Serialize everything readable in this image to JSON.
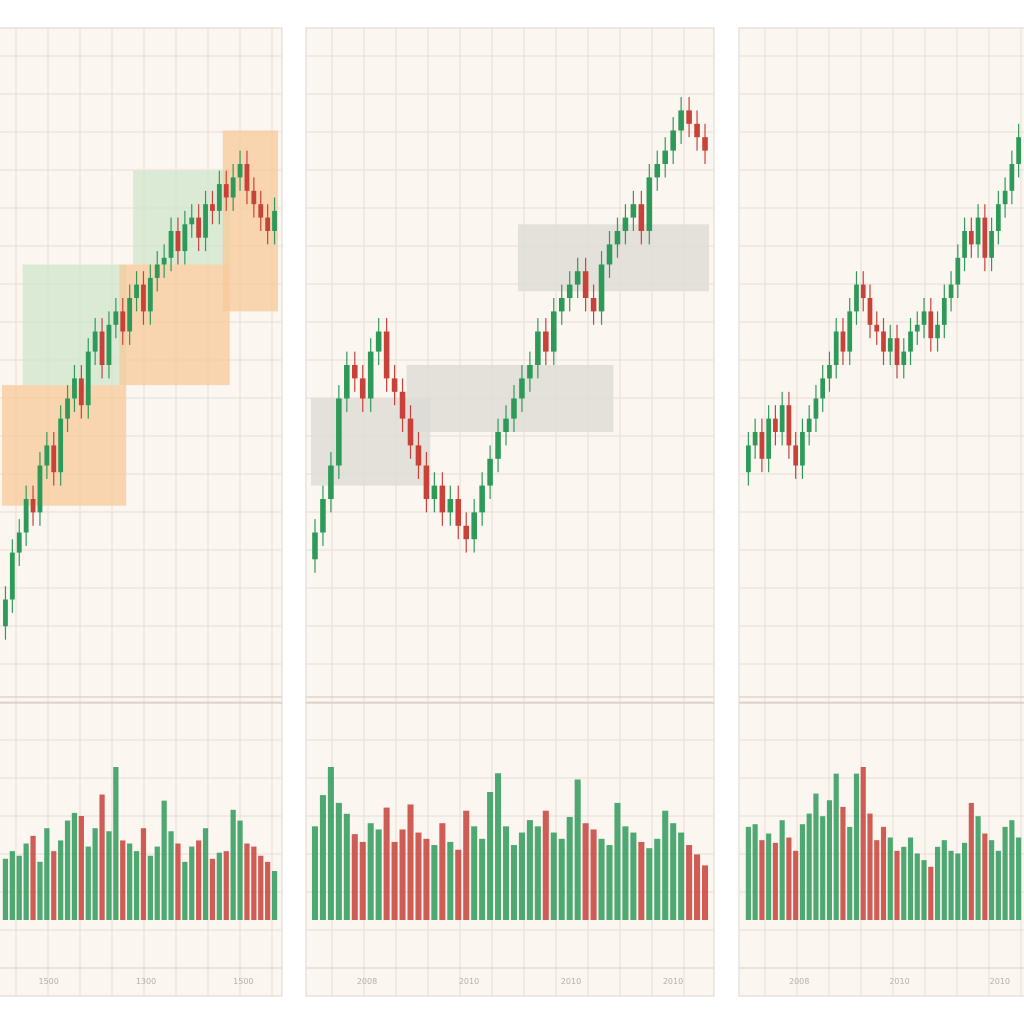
{
  "colors": {
    "up": "#2e9a5a",
    "down": "#c8423a",
    "panel_bg": "#fbf6f0",
    "grid": "#e8ded4",
    "zone_orange": "#f7c99a",
    "zone_green": "#cfe6cc",
    "zone_gray": "#dcdad4"
  },
  "chart_data": [
    {
      "type": "candlestick",
      "title": "",
      "price_range": [
        0,
        100
      ],
      "grid": true,
      "x_tick_labels": [
        "1500",
        "1300",
        "1500"
      ],
      "closes": [
        15,
        22,
        25,
        30,
        28,
        35,
        38,
        34,
        42,
        45,
        48,
        44,
        52,
        55,
        50,
        56,
        58,
        55,
        60,
        62,
        58,
        63,
        65,
        66,
        70,
        67,
        71,
        72,
        69,
        74,
        73,
        77,
        75,
        78,
        80,
        76,
        74,
        72,
        70,
        73
      ],
      "volumes": [
        40,
        45,
        42,
        50,
        55,
        38,
        60,
        45,
        52,
        65,
        70,
        68,
        48,
        60,
        82,
        58,
        100,
        52,
        50,
        45,
        60,
        42,
        48,
        78,
        58,
        50,
        38,
        48,
        52,
        60,
        40,
        44,
        45,
        72,
        65,
        50,
        48,
        42,
        38,
        32
      ],
      "zones": [
        {
          "from": 0,
          "to": 17,
          "low": 29,
          "high": 47,
          "color": "orange"
        },
        {
          "from": 3,
          "to": 17,
          "low": 47,
          "high": 65,
          "color": "green"
        },
        {
          "from": 17,
          "to": 32,
          "low": 47,
          "high": 65,
          "color": "orange"
        },
        {
          "from": 19,
          "to": 32,
          "low": 65,
          "high": 79,
          "color": "green"
        },
        {
          "from": 32,
          "to": 39,
          "low": 58,
          "high": 85,
          "color": "orange"
        }
      ]
    },
    {
      "type": "candlestick",
      "title": "",
      "price_range": [
        0,
        100
      ],
      "grid": true,
      "x_tick_labels": [
        "2008",
        "2010",
        "2010",
        "2010"
      ],
      "closes": [
        25,
        30,
        35,
        45,
        50,
        48,
        45,
        52,
        55,
        48,
        46,
        42,
        38,
        35,
        30,
        32,
        28,
        30,
        26,
        24,
        28,
        32,
        36,
        40,
        42,
        45,
        48,
        50,
        55,
        52,
        58,
        60,
        62,
        64,
        60,
        58,
        65,
        68,
        70,
        72,
        74,
        70,
        78,
        80,
        82,
        85,
        88,
        86,
        84,
        82
      ],
      "volumes": [
        60,
        80,
        98,
        75,
        68,
        55,
        50,
        62,
        58,
        72,
        50,
        58,
        74,
        56,
        52,
        48,
        62,
        50,
        45,
        70,
        60,
        52,
        82,
        94,
        60,
        48,
        56,
        64,
        60,
        70,
        56,
        52,
        66,
        90,
        62,
        58,
        52,
        48,
        75,
        60,
        56,
        50,
        46,
        52,
        70,
        62,
        56,
        48,
        42,
        35
      ],
      "zones": [
        {
          "from": 0,
          "to": 14,
          "low": 32,
          "high": 45,
          "color": "gray"
        },
        {
          "from": 12,
          "to": 37,
          "low": 40,
          "high": 50,
          "color": "gray"
        },
        {
          "from": 26,
          "to": 49,
          "low": 61,
          "high": 71,
          "color": "gray"
        }
      ]
    },
    {
      "type": "candlestick",
      "title": "",
      "price_range": [
        0,
        100
      ],
      "grid": true,
      "x_tick_labels": [
        "2008",
        "2010",
        "2010"
      ],
      "closes": [
        38,
        40,
        36,
        42,
        40,
        44,
        38,
        35,
        40,
        42,
        45,
        48,
        50,
        55,
        52,
        58,
        62,
        60,
        56,
        55,
        52,
        54,
        50,
        52,
        55,
        56,
        58,
        54,
        56,
        60,
        62,
        66,
        70,
        68,
        72,
        66,
        70,
        74,
        76,
        80,
        84
      ],
      "volumes": [
        70,
        72,
        60,
        65,
        58,
        75,
        62,
        52,
        72,
        80,
        95,
        78,
        90,
        110,
        85,
        70,
        110,
        115,
        80,
        60,
        70,
        62,
        52,
        55,
        62,
        50,
        45,
        40,
        55,
        60,
        52,
        50,
        58,
        88,
        78,
        65,
        60,
        52,
        70,
        75,
        62
      ],
      "zones": []
    }
  ]
}
